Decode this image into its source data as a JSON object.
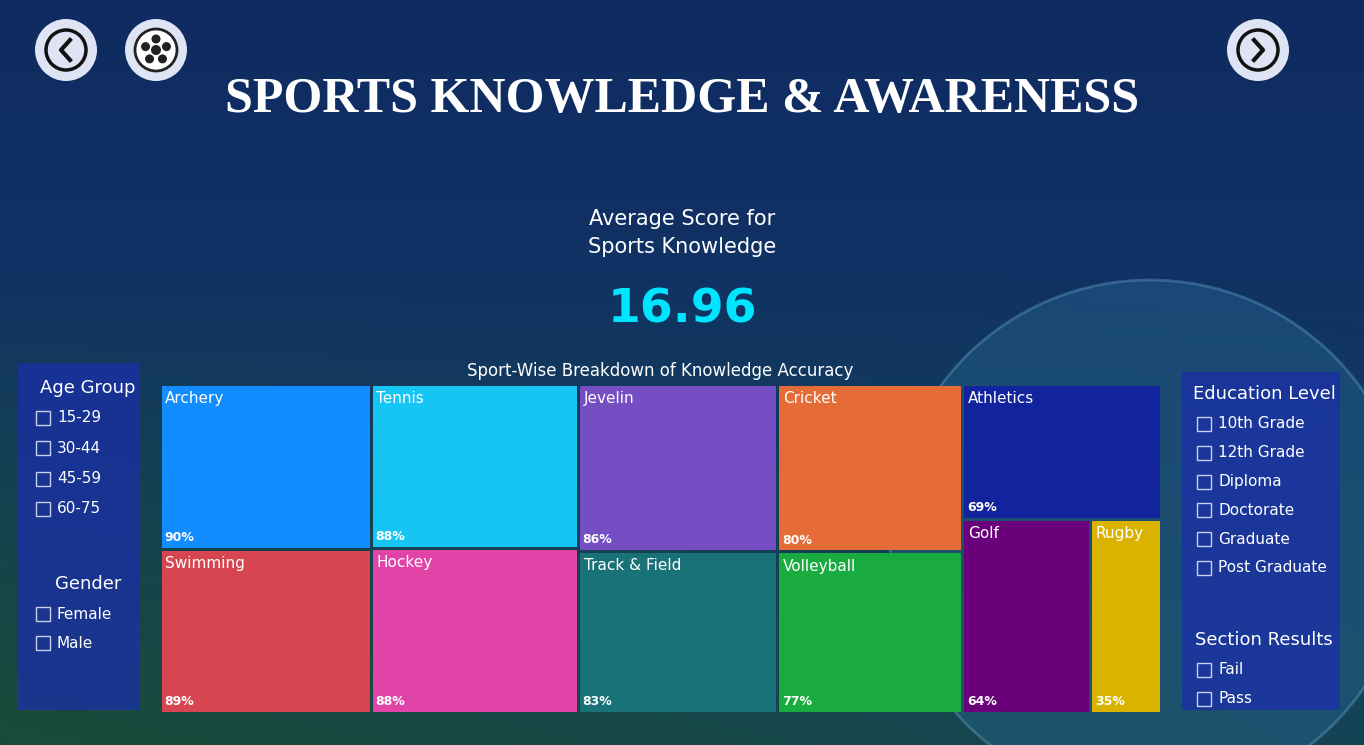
{
  "header": {
    "title": "SPORTS KNOWLEDGE & AWARENESS"
  },
  "kpi": {
    "label": "Average Score for Sports Knowledge",
    "value": 16.96
  },
  "chart_data": {
    "type": "treemap",
    "title": "Sport-Wise Breakdown of Knowledge Accuracy",
    "categories": [
      "Archery",
      "Swimming",
      "Tennis",
      "Hockey",
      "Jevelin",
      "Track & Field",
      "Cricket",
      "Volleyball",
      "Athletics",
      "Golf",
      "Rugby"
    ],
    "values": [
      90,
      89,
      88,
      88,
      86,
      83,
      80,
      77,
      69,
      64,
      35
    ],
    "value_labels": [
      "90%",
      "89%",
      "88%",
      "88%",
      "86%",
      "83%",
      "80%",
      "77%",
      "69%",
      "64%",
      "35%"
    ],
    "colors": [
      "#118DFF",
      "#D64550",
      "#15C6F4",
      "#E044A7",
      "#744EC2",
      "#197278",
      "#E66C37",
      "#1AAB40",
      "#12239E",
      "#6B007B",
      "#D9B300"
    ],
    "data_labels": true
  },
  "slicers": [
    {
      "title": "Age Group",
      "options": [
        "15-29",
        "30-44",
        "45-59",
        "60-75"
      ]
    },
    {
      "title": "Gender",
      "options": [
        "Female",
        "Male"
      ]
    },
    {
      "title": "Education Level",
      "options": [
        "10th Grade",
        "12th Grade",
        "Diploma",
        "Doctorate",
        "Graduate",
        "Post Graduate"
      ]
    },
    {
      "title": "Section Results",
      "options": [
        "Fail",
        "Pass"
      ]
    }
  ]
}
